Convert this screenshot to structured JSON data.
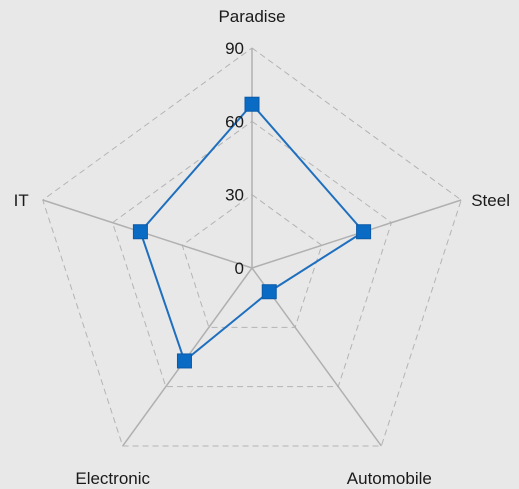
{
  "chart_data": {
    "type": "radar",
    "categories": [
      "Paradise",
      "Steel",
      "Automobile",
      "Electronic",
      "IT"
    ],
    "series": [
      {
        "values": [
          67,
          48,
          12,
          47,
          48
        ],
        "color": "#0a6bc4"
      }
    ],
    "rlim": [
      0,
      90
    ],
    "ticks": [
      "0",
      "30",
      "60",
      "90"
    ],
    "tick_values": [
      0,
      30,
      60,
      90
    ],
    "grid": true,
    "legend": "none"
  }
}
